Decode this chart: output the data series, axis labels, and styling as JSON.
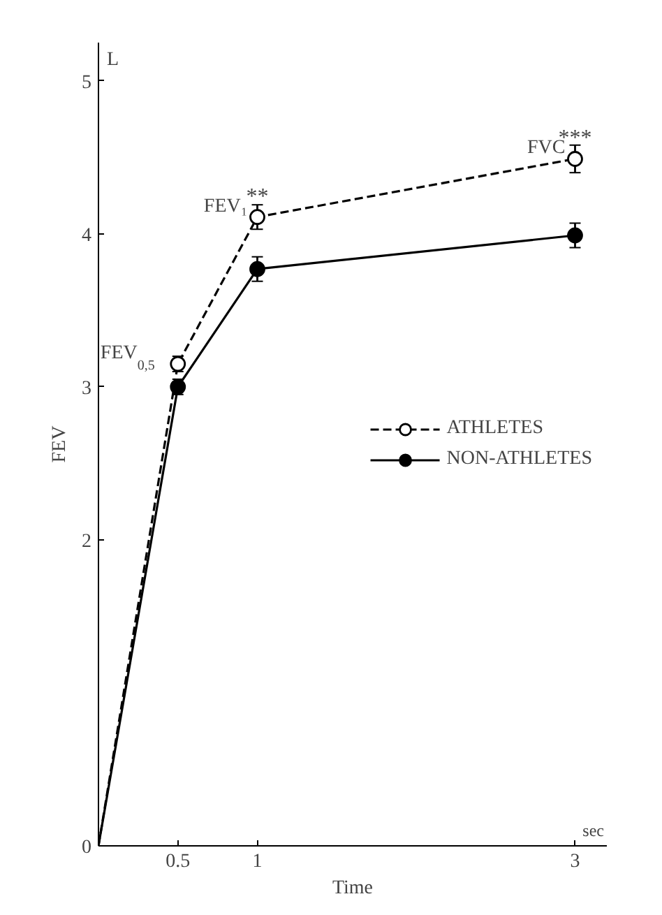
{
  "chart_data": {
    "type": "line",
    "xlabel": "Time",
    "ylabel": "FEV",
    "x": [
      0,
      0.5,
      1,
      3
    ],
    "series": [
      {
        "name": "ATHLETES",
        "color": "#000000",
        "line_style": "dashed",
        "values": [
          0,
          3.15,
          4.11,
          4.49
        ],
        "errors": [
          null,
          0.05,
          0.08,
          0.09
        ]
      },
      {
        "name": "NON-ATHLETES",
        "color": "#000000",
        "line_style": "solid",
        "values": [
          0,
          3.0,
          3.77,
          3.99
        ],
        "errors": [
          null,
          0.05,
          0.08,
          0.08
        ]
      }
    ],
    "xlim": [
      0,
      3.2
    ],
    "ylim": [
      0,
      5.25
    ],
    "xticks": [
      0.5,
      1,
      3
    ],
    "yticks": [
      0,
      2,
      3,
      4,
      5
    ],
    "marker": "circle",
    "grid": false,
    "legend": "right",
    "annotations": [
      "L",
      "sec",
      {
        "text": "FEV$_{0,5}$",
        "x": 0.5,
        "y": 3.15
      },
      {
        "text": "FEV₁",
        "x": 1,
        "y": 4.11
      },
      {
        "text": "**",
        "x": 1,
        "y": 4.11
      },
      {
        "text": "FVC",
        "x": 3,
        "y": 4.49
      },
      {
        "text": "***",
        "x": 3,
        "y": 4.49
      }
    ]
  }
}
